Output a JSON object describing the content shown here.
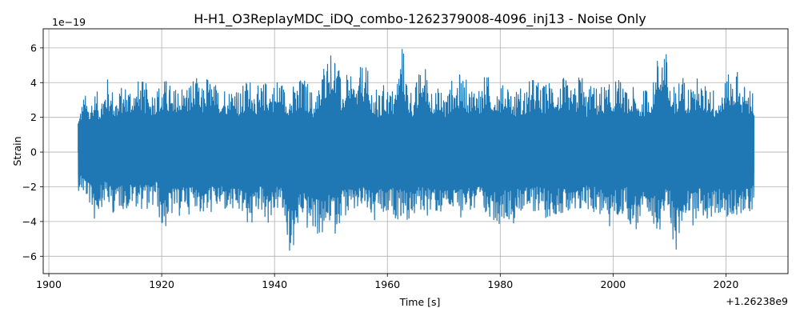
{
  "chart_data": {
    "type": "line",
    "title": "H-H1_O3ReplayMDC_iDQ_combo-1262379008-4096_inj13 - Noise Only",
    "xlabel": "Time [s]",
    "ylabel": "Strain",
    "x_offset_label": "+1.26238e9",
    "y_scale_label": "1e−19",
    "xlim": [
      1899,
      2031
    ],
    "ylim": [
      -7.0,
      7.1
    ],
    "x_ticks": [
      1900,
      1920,
      1940,
      1960,
      1980,
      2000,
      2020
    ],
    "x_tick_labels": [
      "1900",
      "1920",
      "1940",
      "1960",
      "1980",
      "2000",
      "2020"
    ],
    "y_ticks": [
      -6,
      -4,
      -2,
      0,
      2,
      4,
      6
    ],
    "y_tick_labels": [
      "−6",
      "−4",
      "−2",
      "0",
      "2",
      "4",
      "6"
    ],
    "grid": true,
    "line_color": "#1f77b4",
    "series": [
      {
        "x_start": 1905.2,
        "x_end": 2025.0,
        "envelope_upper": [
          2.4,
          3.4,
          3.2,
          3.6,
          3.3,
          4.5,
          3.8,
          3.5,
          3.9,
          4.2,
          3.9,
          4.3,
          4.0,
          3.8,
          3.9,
          4.2,
          4.3,
          3.6,
          4.2,
          3.9,
          4.3,
          4.5,
          3.5,
          4.6,
          4.1,
          3.9,
          4.1,
          3.8,
          4.4,
          3.5,
          4.3,
          4.4,
          3.8,
          4.0,
          4.3,
          4.1,
          4.6,
          3.8,
          3.8,
          4.0,
          4.4,
          4.2,
          3.5,
          3.8,
          5.4,
          6.0,
          6.2,
          4.2,
          4.5,
          4.3,
          4.5,
          5.3,
          4.6,
          3.8,
          3.4,
          4.2,
          3.6,
          4.2,
          6.5,
          4.1,
          3.6,
          4.6,
          5.3,
          4.2,
          3.7,
          3.8,
          3.5,
          4.3,
          4.5,
          4.6,
          3.8,
          4.2,
          3.9,
          4.6,
          4.2,
          4.1,
          3.9,
          4.3,
          3.5,
          3.9,
          3.8,
          4.2,
          4.5,
          3.8,
          4.1,
          4.6,
          3.9,
          4.4,
          3.6,
          3.8,
          5.1,
          3.5,
          4.0,
          3.8,
          4.0,
          3.9,
          4.2,
          4.3,
          3.5,
          3.8,
          3.6,
          3.5,
          3.9,
          4.1,
          6.2,
          6.5,
          4.3,
          3.6,
          4.8,
          4.0,
          4.1,
          4.4,
          3.8,
          4.3,
          3.6,
          3.9,
          4.3,
          4.7,
          4.9,
          3.9,
          4.0,
          3.8
        ],
        "envelope_lower": [
          -2.2,
          -2.6,
          -3.1,
          -4.2,
          -3.2,
          -3.0,
          -3.6,
          -3.4,
          -3.3,
          -3.5,
          -3.0,
          -3.4,
          -3.2,
          -3.6,
          -2.9,
          -4.8,
          -4.3,
          -3.7,
          -3.8,
          -3.5,
          -3.6,
          -3.1,
          -3.7,
          -3.9,
          -3.5,
          -3.4,
          -3.5,
          -3.6,
          -3.8,
          -3.7,
          -4.1,
          -4.6,
          -3.4,
          -3.6,
          -4.2,
          -3.9,
          -3.2,
          -4.3,
          -6.3,
          -5.3,
          -3.8,
          -4.6,
          -4.7,
          -4.9,
          -5.2,
          -4.2,
          -4.8,
          -3.9,
          -3.8,
          -3.9,
          -3.5,
          -3.5,
          -3.6,
          -4.4,
          -3.7,
          -4.2,
          -3.6,
          -3.9,
          -3.8,
          -4.1,
          -3.9,
          -3.5,
          -3.6,
          -3.8,
          -3.6,
          -3.7,
          -3.4,
          -3.6,
          -4.0,
          -3.5,
          -3.4,
          -3.8,
          -3.5,
          -4.1,
          -3.6,
          -4.3,
          -3.9,
          -3.9,
          -4.1,
          -3.5,
          -3.6,
          -3.8,
          -3.4,
          -3.6,
          -3.9,
          -3.7,
          -3.5,
          -3.8,
          -3.9,
          -4.2,
          -3.6,
          -3.3,
          -3.5,
          -3.7,
          -3.8,
          -4.6,
          -3.9,
          -4.0,
          -3.4,
          -4.4,
          -4.6,
          -3.9,
          -4.9,
          -4.2,
          -4.6,
          -3.8,
          -4.0,
          -6.3,
          -4.5,
          -3.5,
          -4.3,
          -3.6,
          -3.9,
          -4.1,
          -3.8,
          -3.6,
          -4.3,
          -3.9,
          -3.6,
          -4.0,
          -3.6,
          -3.4
        ]
      }
    ]
  }
}
